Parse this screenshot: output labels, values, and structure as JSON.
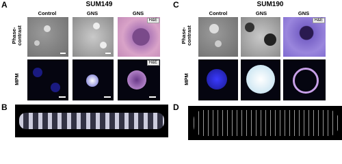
{
  "panels": [
    {
      "label": "A",
      "title": "SUM149",
      "columns": [
        "Control",
        "GNS",
        "GNS"
      ],
      "rows": [
        "Phase-contrast",
        "MPM"
      ],
      "badges": [
        "H&E",
        "H&E"
      ]
    },
    {
      "label": "B"
    },
    {
      "label": "C",
      "title": "SUM190",
      "columns": [
        "Control",
        "GNS",
        "GNS"
      ],
      "rows": [
        "Phase-contrast",
        "MPM"
      ],
      "badges": [
        "H&E"
      ]
    },
    {
      "label": "D"
    }
  ]
}
